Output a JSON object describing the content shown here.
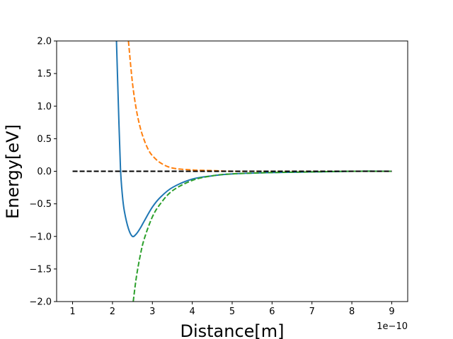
{
  "chart_data": {
    "type": "line",
    "title": "",
    "xlabel": "Distance[m]",
    "ylabel": "Energy[eV]",
    "x_offset_label": "1e−10",
    "xlim": [
      0.6,
      9.4
    ],
    "ylim": [
      -2.0,
      2.0
    ],
    "x_ticks": [
      1,
      2,
      3,
      4,
      5,
      6,
      7,
      8,
      9
    ],
    "x_tick_labels": [
      "1",
      "2",
      "3",
      "4",
      "5",
      "6",
      "7",
      "8",
      "9"
    ],
    "y_ticks": [
      -2.0,
      -1.5,
      -1.0,
      -0.5,
      0.0,
      0.5,
      1.0,
      1.5,
      2.0
    ],
    "y_tick_labels": [
      "−2.0",
      "−1.5",
      "−1.0",
      "−0.5",
      "0.0",
      "0.5",
      "1.0",
      "1.5",
      "2.0"
    ],
    "grid": false,
    "legend": "none",
    "series": [
      {
        "color": "#1f77b4",
        "style": "solid",
        "x": [
          2.1,
          2.15,
          2.2,
          2.25,
          2.3,
          2.4,
          2.5,
          2.6,
          2.7,
          2.8,
          3.0,
          3.2,
          3.5,
          4.0,
          4.5,
          5.0,
          6.0,
          7.0,
          8.0,
          9.0
        ],
        "y": [
          2.0,
          0.98,
          0.05,
          -0.38,
          -0.62,
          -0.88,
          -1.0,
          -0.96,
          -0.87,
          -0.76,
          -0.55,
          -0.4,
          -0.25,
          -0.12,
          -0.07,
          -0.04,
          -0.02,
          -0.01,
          0.0,
          0.0
        ]
      },
      {
        "color": "#ff7f0e",
        "style": "dashed",
        "x": [
          2.4,
          2.5,
          2.6,
          2.7,
          2.8,
          2.9,
          3.0,
          3.2,
          3.5,
          4.0,
          4.5,
          5.0,
          6.0,
          7.0,
          8.0,
          9.0
        ],
        "y": [
          2.0,
          1.36,
          0.94,
          0.66,
          0.47,
          0.33,
          0.24,
          0.13,
          0.05,
          0.02,
          0.01,
          0.0,
          0.0,
          0.0,
          0.0,
          0.0
        ]
      },
      {
        "color": "#2ca02c",
        "style": "dashed",
        "x": [
          2.52,
          2.6,
          2.7,
          2.8,
          3.0,
          3.2,
          3.5,
          4.0,
          4.5,
          5.0,
          6.0,
          7.0,
          8.0,
          9.0
        ],
        "y": [
          -2.0,
          -1.62,
          -1.28,
          -1.03,
          -0.7,
          -0.5,
          -0.3,
          -0.14,
          -0.07,
          -0.04,
          -0.02,
          -0.01,
          0.0,
          0.0
        ]
      },
      {
        "color": "#000000",
        "style": "dashed",
        "x": [
          1,
          9
        ],
        "y": [
          0,
          0
        ]
      }
    ]
  }
}
